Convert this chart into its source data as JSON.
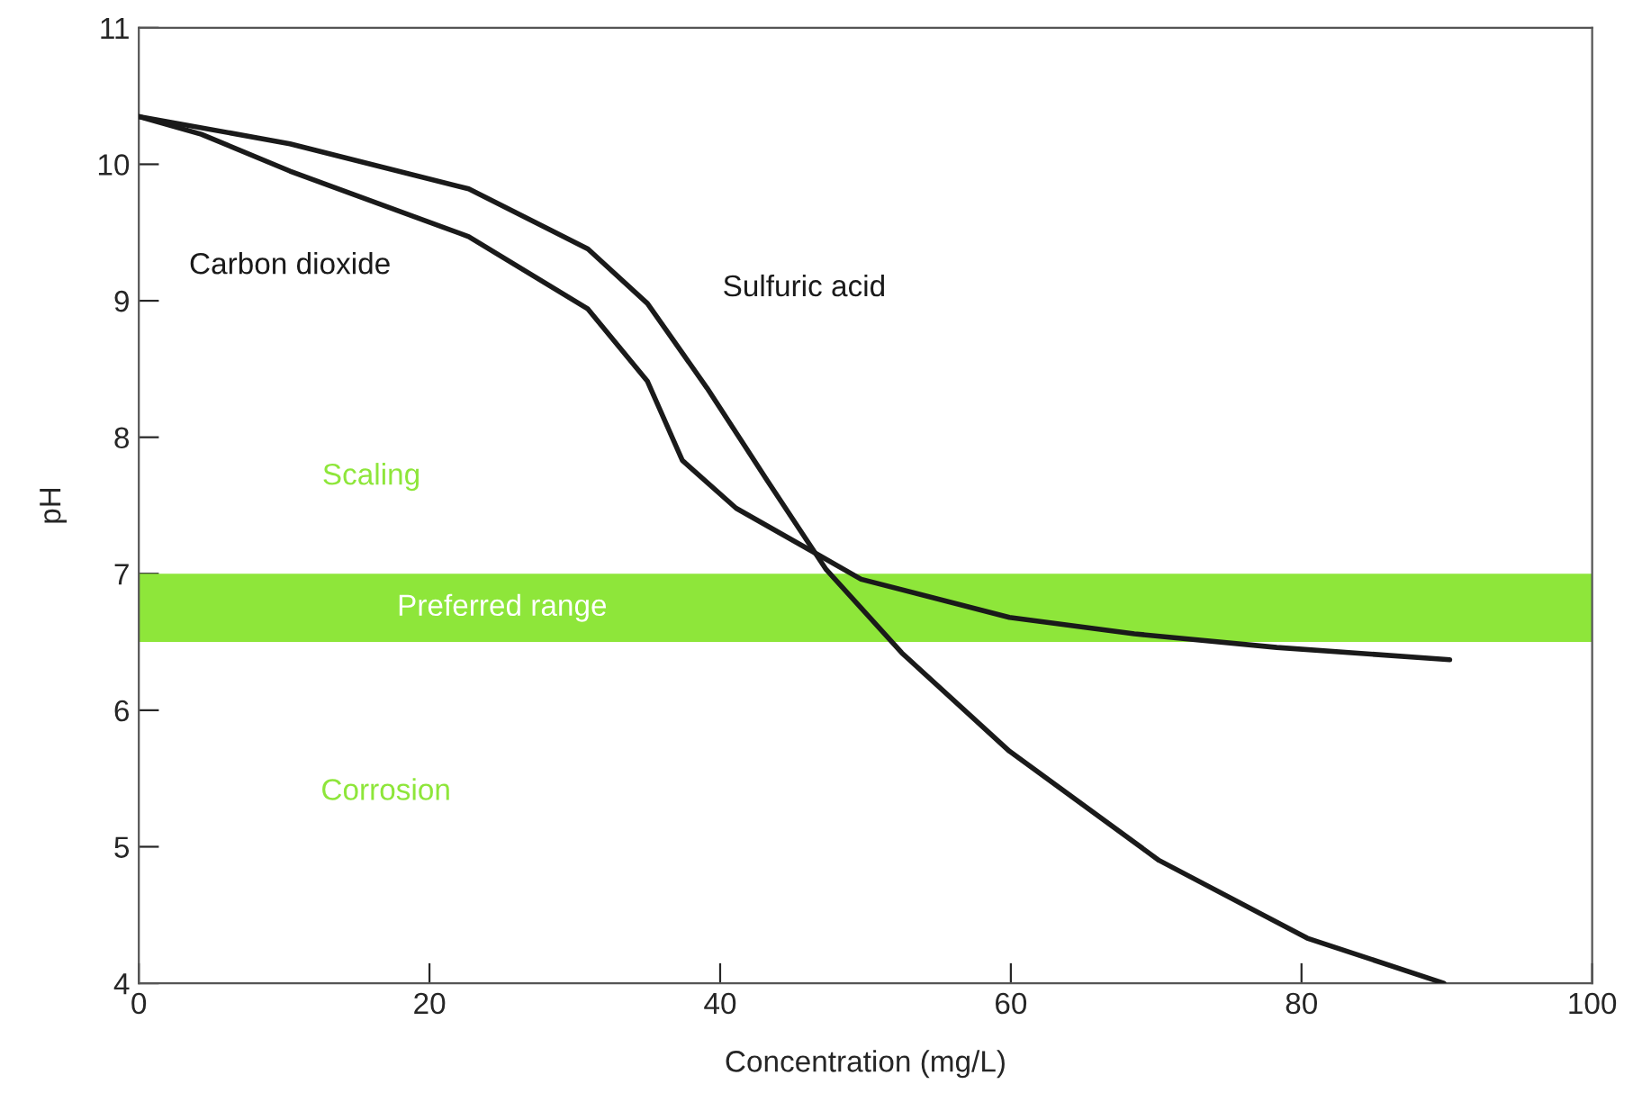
{
  "chart_data": {
    "type": "line",
    "xlabel": "Concentration (mg/L)",
    "ylabel": "pH",
    "xlim": [
      0,
      100
    ],
    "xticks": [
      0,
      20,
      40,
      60,
      80,
      100
    ],
    "ylim": [
      4,
      11
    ],
    "yticks": [
      4,
      5,
      6,
      7,
      8,
      9,
      10,
      11
    ],
    "grid": false,
    "line_style": "solid",
    "marker": "none",
    "series": [
      {
        "name": "Carbon dioxide",
        "color": "#1a1a1a",
        "x": [
          0,
          4.3,
          10.4,
          22.7,
          30.9,
          35,
          37.4,
          41.1,
          46.4,
          49.7,
          59.9,
          68.5,
          78.3,
          90.2
        ],
        "values": [
          10.35,
          10.22,
          9.95,
          9.47,
          8.94,
          8.41,
          7.83,
          7.48,
          7.16,
          6.96,
          6.68,
          6.56,
          6.46,
          6.37
        ]
      },
      {
        "name": "Sulfuric acid",
        "color": "#1a1a1a",
        "x": [
          0,
          10.4,
          22.7,
          30.9,
          35,
          39.1,
          43.2,
          47.3,
          52.5,
          59.9,
          70.2,
          80.4,
          89.8
        ],
        "values": [
          10.35,
          10.15,
          9.82,
          9.38,
          8.98,
          8.36,
          7.69,
          7.03,
          6.42,
          5.7,
          4.9,
          4.33,
          4.0
        ]
      }
    ],
    "bands": [
      {
        "axis": "y",
        "from": 6.5,
        "to": 7,
        "label": "Preferred range",
        "color": "#8ee63a"
      }
    ],
    "annotations": [
      "Scaling",
      "Corrosion"
    ]
  }
}
